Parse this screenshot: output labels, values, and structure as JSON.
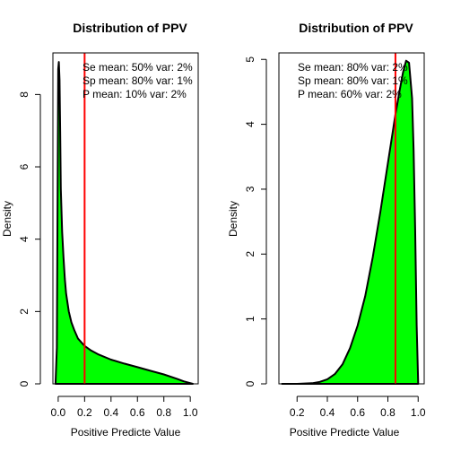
{
  "chart_data": [
    {
      "type": "area",
      "title": "Distribution of PPV",
      "xlabel": "Positive Predicte Value",
      "ylabel": "Density",
      "xlim": [
        -0.04,
        1.06
      ],
      "ylim": [
        0,
        9.15
      ],
      "xticks": [
        0.0,
        0.2,
        0.4,
        0.6,
        0.8,
        1.0
      ],
      "xtick_labels": [
        "0.0",
        "0.2",
        "0.4",
        "0.6",
        "0.8",
        "1.0"
      ],
      "yticks": [
        0,
        2,
        4,
        6,
        8
      ],
      "ytick_labels": [
        "0",
        "2",
        "4",
        "6",
        "8"
      ],
      "fill_color": "#00ff00",
      "line_color": "#000000",
      "vline": {
        "x": 0.2,
        "color": "#ff0000"
      },
      "annotations": [
        "Se mean: 50% var: 2%",
        "Sp mean: 80% var: 1%",
        "P mean: 10% var: 2%"
      ],
      "x": [
        -0.02,
        -0.01,
        0.0,
        0.005,
        0.01,
        0.015,
        0.02,
        0.03,
        0.04,
        0.05,
        0.06,
        0.08,
        0.1,
        0.12,
        0.15,
        0.2,
        0.25,
        0.3,
        0.4,
        0.5,
        0.6,
        0.7,
        0.8,
        0.9,
        0.95,
        1.0,
        1.02
      ],
      "y": [
        0.0,
        1.0,
        8.7,
        8.9,
        8.4,
        7.0,
        5.4,
        4.2,
        3.5,
        2.9,
        2.5,
        2.0,
        1.7,
        1.5,
        1.25,
        1.05,
        0.92,
        0.82,
        0.67,
        0.56,
        0.46,
        0.36,
        0.26,
        0.14,
        0.07,
        0.02,
        0.0
      ]
    },
    {
      "type": "area",
      "title": "Distribution of PPV",
      "xlabel": "Positive Predicte Value",
      "ylabel": "Density",
      "xlim": [
        0.08,
        1.04
      ],
      "ylim": [
        0,
        5.1
      ],
      "xticks": [
        0.2,
        0.4,
        0.6,
        0.8,
        1.0
      ],
      "xtick_labels": [
        "0.2",
        "0.4",
        "0.6",
        "0.8",
        "1.0"
      ],
      "yticks": [
        0,
        1,
        2,
        3,
        4,
        5
      ],
      "ytick_labels": [
        "0",
        "1",
        "2",
        "3",
        "4",
        "5"
      ],
      "fill_color": "#00ff00",
      "line_color": "#000000",
      "vline": {
        "x": 0.85,
        "color": "#ff0000"
      },
      "annotations": [
        "Se mean: 80% var: 2%",
        "Sp mean: 80% var: 1%",
        "P mean: 60% var: 2%"
      ],
      "x": [
        0.1,
        0.2,
        0.3,
        0.35,
        0.4,
        0.45,
        0.5,
        0.55,
        0.6,
        0.65,
        0.7,
        0.75,
        0.8,
        0.85,
        0.88,
        0.9,
        0.92,
        0.94,
        0.96,
        0.97,
        0.98,
        0.99,
        1.0
      ],
      "y": [
        0.0,
        0.0,
        0.01,
        0.03,
        0.07,
        0.15,
        0.3,
        0.55,
        0.9,
        1.35,
        1.95,
        2.65,
        3.4,
        4.15,
        4.55,
        4.8,
        4.98,
        4.95,
        4.4,
        3.6,
        2.4,
        0.9,
        0.0
      ]
    }
  ]
}
